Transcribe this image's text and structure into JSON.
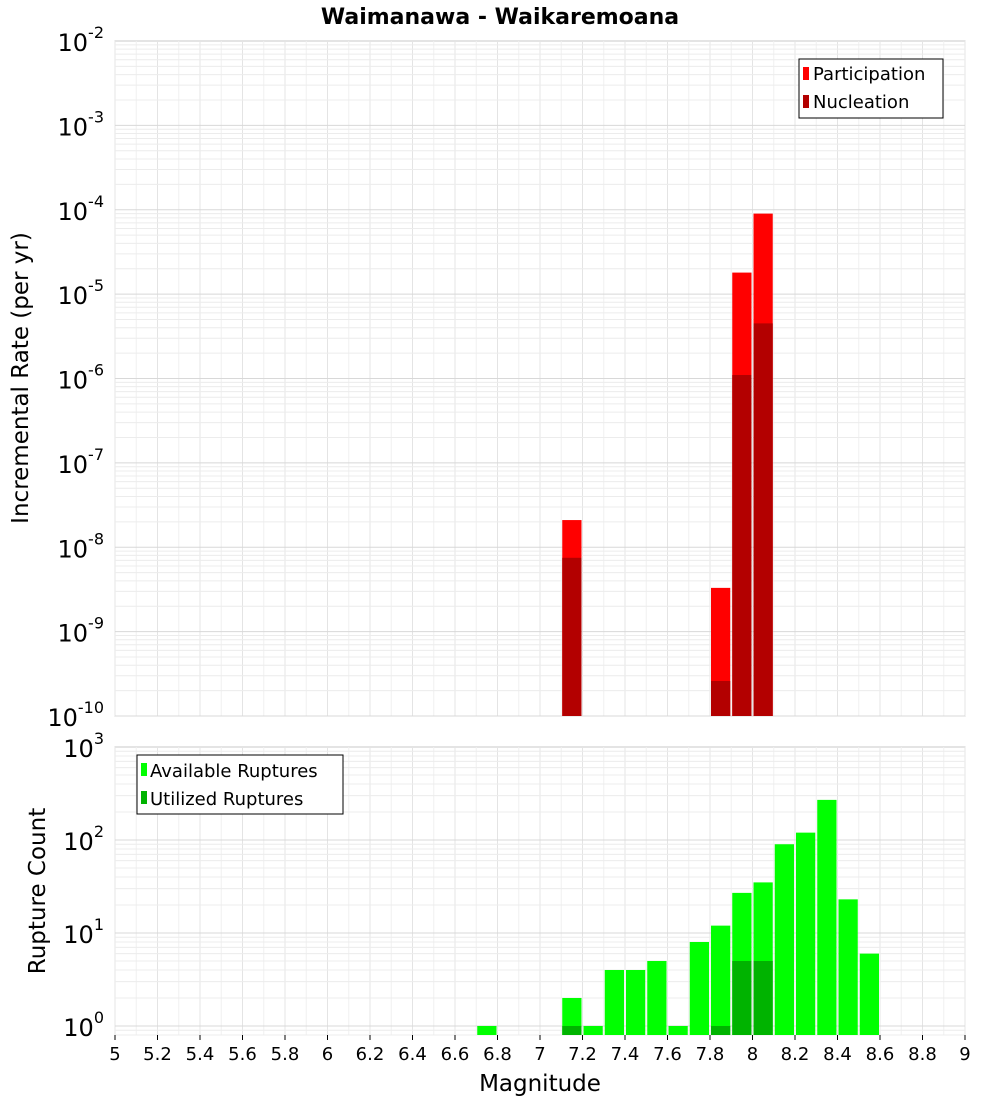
{
  "chart_data": [
    {
      "type": "bar",
      "title": "Waimanawa - Waikaremoana",
      "ylabel": "Incremental Rate (per yr)",
      "xlabel": "",
      "y_scale": "log",
      "ylim": [
        1e-10,
        0.01
      ],
      "xlim": [
        5,
        9
      ],
      "legend": "top-right",
      "grid": true,
      "y_ticks": [
        {
          "base": "10",
          "exp": "-10"
        },
        {
          "base": "10",
          "exp": "-9"
        },
        {
          "base": "10",
          "exp": "-8"
        },
        {
          "base": "10",
          "exp": "-7"
        },
        {
          "base": "10",
          "exp": "-6"
        },
        {
          "base": "10",
          "exp": "-5"
        },
        {
          "base": "10",
          "exp": "-4"
        },
        {
          "base": "10",
          "exp": "-3"
        },
        {
          "base": "10",
          "exp": "-2"
        }
      ],
      "series": [
        {
          "name": "Participation",
          "color": "#ff0000",
          "x": [
            7.15,
            7.85,
            7.95,
            8.05
          ],
          "values": [
            2.1e-08,
            3.3e-09,
            1.8e-05,
            9e-05
          ]
        },
        {
          "name": "Nucleation",
          "color": "#b30000",
          "x": [
            7.15,
            7.85,
            7.95,
            8.05
          ],
          "values": [
            7.5e-09,
            2.6e-10,
            1.1e-06,
            4.5e-06
          ]
        }
      ]
    },
    {
      "type": "bar",
      "title": "",
      "ylabel": "Rupture Count",
      "xlabel": "Magnitude",
      "y_scale": "log",
      "ylim": [
        0.8,
        1000
      ],
      "xlim": [
        5,
        9
      ],
      "legend": "top-left",
      "grid": true,
      "y_ticks": [
        {
          "base": "10",
          "exp": "0"
        },
        {
          "base": "10",
          "exp": "1"
        },
        {
          "base": "10",
          "exp": "2"
        },
        {
          "base": "10",
          "exp": "3"
        }
      ],
      "series": [
        {
          "name": "Available Ruptures",
          "color": "#00ff00",
          "x": [
            6.75,
            7.15,
            7.25,
            7.35,
            7.45,
            7.55,
            7.65,
            7.75,
            7.85,
            7.95,
            8.05,
            8.15,
            8.25,
            8.35,
            8.45,
            8.55
          ],
          "values": [
            1,
            2,
            1,
            4,
            4,
            5,
            1,
            8,
            12,
            27,
            35,
            90,
            120,
            270,
            23,
            6
          ]
        },
        {
          "name": "Utilized Ruptures",
          "color": "#00b300",
          "x": [
            7.15,
            7.85,
            7.95,
            8.05
          ],
          "values": [
            1,
            1,
            5,
            5
          ]
        }
      ]
    }
  ],
  "x_tick_labels": [
    "5",
    "5.2",
    "5.4",
    "5.6",
    "5.8",
    "6",
    "6.2",
    "6.4",
    "6.6",
    "6.8",
    "7",
    "7.2",
    "7.4",
    "7.6",
    "7.8",
    "8",
    "8.2",
    "8.4",
    "8.6",
    "8.8",
    "9"
  ],
  "x_tick_values": [
    5,
    5.2,
    5.4,
    5.6,
    5.8,
    6,
    6.2,
    6.4,
    6.6,
    6.8,
    7,
    7.2,
    7.4,
    7.6,
    7.8,
    8,
    8.2,
    8.4,
    8.6,
    8.8,
    9
  ],
  "bar_width": 0.1
}
